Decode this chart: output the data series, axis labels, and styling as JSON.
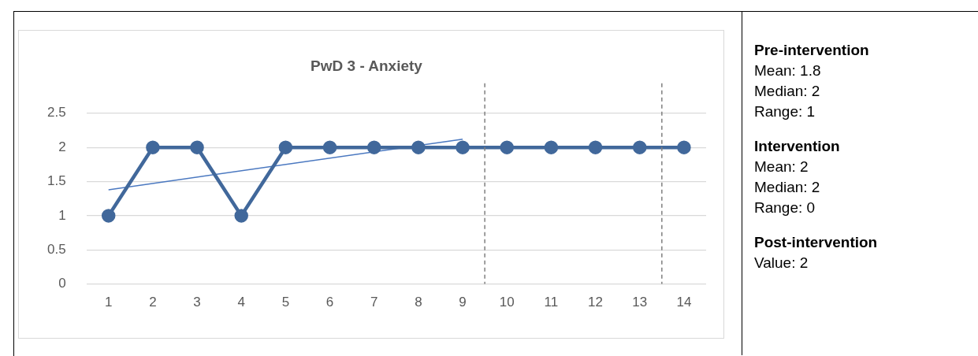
{
  "chart_data": {
    "type": "line",
    "title": "PwD 3 - Anxiety",
    "x": [
      1,
      2,
      3,
      4,
      5,
      6,
      7,
      8,
      9,
      10,
      11,
      12,
      13,
      14
    ],
    "series": [
      {
        "color": "#41689b",
        "values": [
          1,
          2,
          2,
          1,
          2,
          2,
          2,
          2,
          2,
          2,
          2,
          2,
          2,
          2
        ],
        "marker": "circle"
      },
      {
        "color": "#4a78c0",
        "x": [
          1,
          9
        ],
        "values": [
          1.38,
          2.12
        ],
        "marker": "none"
      }
    ],
    "xlim": [
      0.5,
      14.5
    ],
    "xticks": [
      1,
      2,
      3,
      4,
      5,
      6,
      7,
      8,
      9,
      10,
      11,
      12,
      13,
      14
    ],
    "ylim": [
      0,
      2.5
    ],
    "yticks": [
      0,
      0.5,
      1,
      1.5,
      2,
      2.5
    ],
    "grid": "y",
    "legend": false,
    "ref_lines": [
      {
        "axis": "x",
        "value": 9.5,
        "color": "#7f7f7f",
        "line_style": "dashed"
      },
      {
        "axis": "x",
        "value": 13.5,
        "color": "#7f7f7f",
        "line_style": "dashed"
      }
    ],
    "annotations": [
      "Pre-intervention",
      "Mean: 1.8",
      "Median: 2",
      "Range: 1",
      "Intervention",
      "Mean: 2",
      "Median: 2",
      "Range: 0",
      "Post-intervention",
      "Value: 2"
    ]
  }
}
